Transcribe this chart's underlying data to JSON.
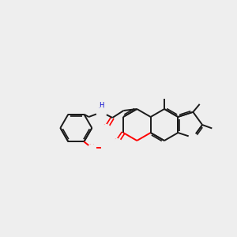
{
  "bg_color": "#eeeeee",
  "bond_color": "#1a1a1a",
  "oxygen_color": "#ff0000",
  "nitrogen_color": "#0000cd",
  "figsize": [
    3.0,
    3.0
  ],
  "dpi": 100,
  "lw": 1.4,
  "lw_d": 1.2
}
